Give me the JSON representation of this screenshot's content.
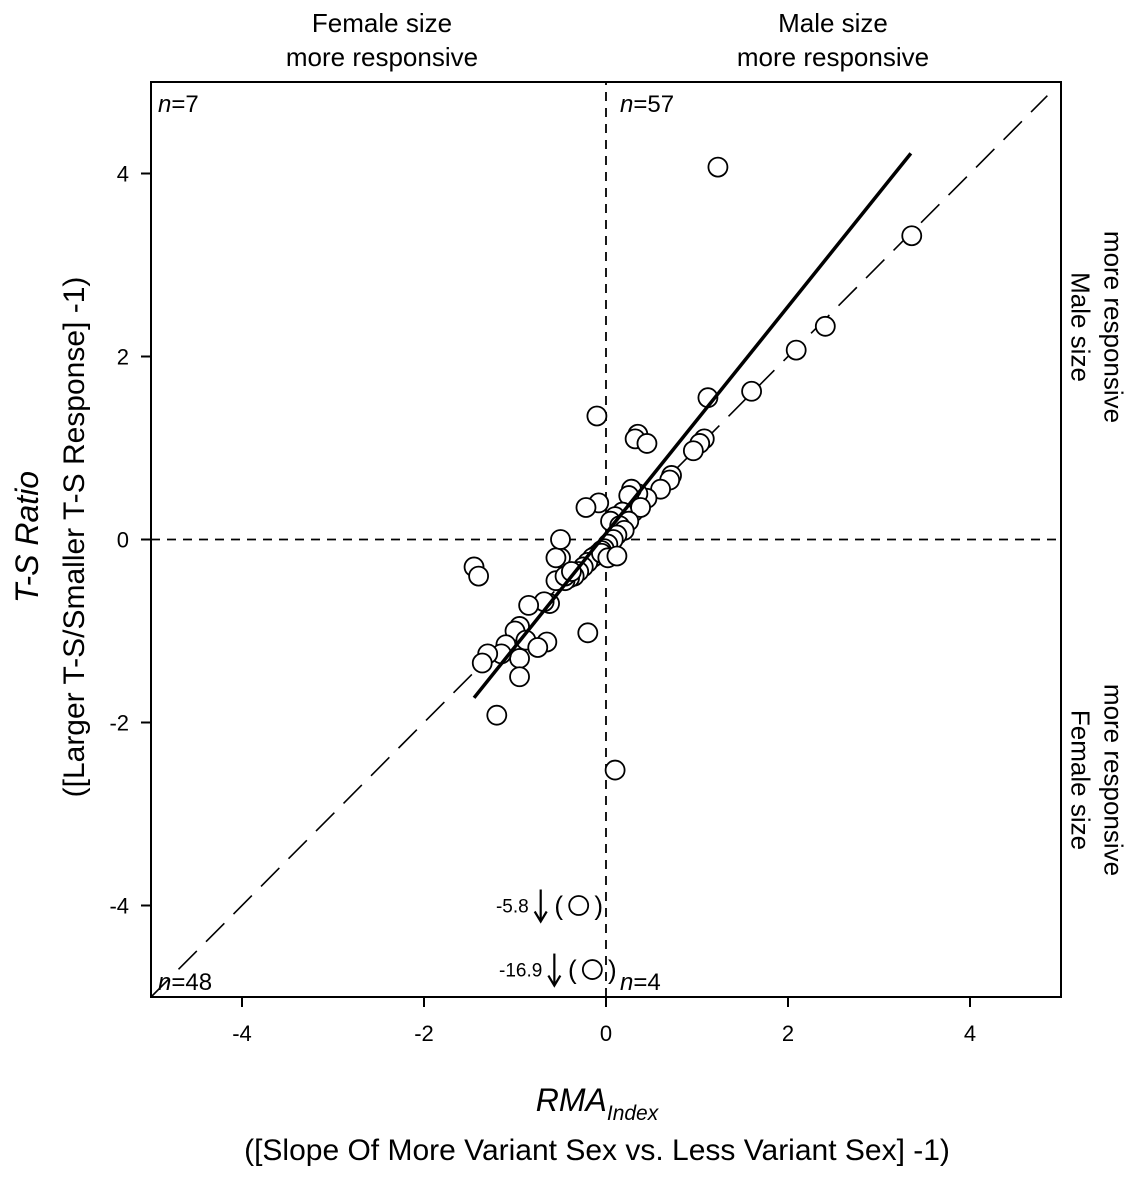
{
  "chart_data": {
    "type": "scatter",
    "xlabel": "RMA",
    "xlabel_subscript": "Index",
    "xlabel_line2": "([Slope Of More Variant Sex vs. Less Variant Sex] -1)",
    "ylabel_line1": "T-S Ratio",
    "ylabel_line2": "([Larger T-S/Smaller T-S Response] -1)",
    "xlim": [
      -5,
      5
    ],
    "ylim": [
      -5,
      5
    ],
    "x_ticks": [
      -4,
      -2,
      0,
      2,
      4
    ],
    "y_ticks": [
      -4,
      -2,
      0,
      2,
      4
    ],
    "x_tick_labels": [
      "-4",
      "-2",
      "0",
      "2",
      "4"
    ],
    "y_tick_labels": [
      "-4",
      "-2",
      "0",
      "2",
      "4"
    ],
    "grid": false,
    "legend": "none",
    "region_labels": {
      "top_left": [
        "Female size",
        "more responsive"
      ],
      "top_right": [
        "Male size",
        "more responsive"
      ],
      "right_upper": [
        "Male size",
        "more responsive"
      ],
      "right_lower": [
        "Female size",
        "more responsive"
      ]
    },
    "quadrant_counts": {
      "top_left": {
        "var": "n",
        "value": "=7"
      },
      "top_right": {
        "var": "n",
        "value": "=57"
      },
      "bottom_left": {
        "var": "n",
        "value": "=48"
      },
      "bottom_right": {
        "var": "n",
        "value": "=4"
      }
    },
    "off_scale_annotations": [
      {
        "label": "-5.8",
        "x": -0.3,
        "y": -4.0
      },
      {
        "label": "-16.9",
        "x": -0.15,
        "y": -4.7
      }
    ],
    "reference_lines": [
      {
        "name": "identity",
        "style": "long-dash",
        "x": [
          -5,
          4.85
        ],
        "y": [
          -5,
          4.85
        ]
      },
      {
        "name": "x0",
        "style": "short-dash",
        "x": [
          0,
          0
        ],
        "y": [
          -5,
          5
        ]
      },
      {
        "name": "y0",
        "style": "short-dash",
        "x": [
          -5,
          5
        ],
        "y": [
          0,
          0
        ]
      }
    ],
    "fit_line": {
      "style": "solid",
      "x": [
        -1.45,
        3.35
      ],
      "y": [
        -1.73,
        4.22
      ]
    },
    "points": {
      "x": [
        1.23,
        3.36,
        2.41,
        2.09,
        1.6,
        1.12,
        -0.1,
        0.35,
        0.32,
        0.45,
        1.08,
        1.03,
        0.96,
        0.72,
        0.7,
        0.6,
        0.45,
        0.35,
        0.28,
        0.25,
        0.3,
        0.18,
        0.1,
        0.05,
        0.38,
        0.25,
        0.15,
        0.2,
        0.12,
        0.08,
        0.02,
        -0.02,
        -0.05,
        -0.08,
        -0.12,
        -0.15,
        -0.2,
        -0.25,
        -0.3,
        -0.35,
        -0.4,
        -0.45,
        -0.5,
        -0.55,
        -0.5,
        -0.08,
        -0.22,
        -0.55,
        -0.45,
        -0.38,
        -0.62,
        -0.68,
        -0.85,
        -0.95,
        -1.0,
        -0.88,
        -1.1,
        -0.95,
        -0.65,
        -0.75,
        -1.15,
        -1.3,
        -1.36,
        -1.45,
        -1.4,
        -1.2,
        -0.95,
        -0.2,
        0.1,
        -0.05,
        0.02,
        0.12
      ],
      "y": [
        4.07,
        3.32,
        2.33,
        2.07,
        1.62,
        1.55,
        1.35,
        1.15,
        1.1,
        1.05,
        1.1,
        1.05,
        0.97,
        0.7,
        0.65,
        0.55,
        0.45,
        0.5,
        0.55,
        0.48,
        0.3,
        0.3,
        0.25,
        0.2,
        0.35,
        0.2,
        0.15,
        0.1,
        0.05,
        0.0,
        -0.05,
        -0.1,
        -0.12,
        -0.15,
        -0.18,
        -0.2,
        -0.25,
        -0.3,
        -0.35,
        -0.4,
        -0.42,
        -0.45,
        -0.2,
        -0.2,
        0.0,
        0.4,
        0.35,
        -0.45,
        -0.4,
        -0.35,
        -0.7,
        -0.68,
        -0.72,
        -0.95,
        -1.0,
        -1.1,
        -1.15,
        -1.3,
        -1.12,
        -1.18,
        -1.25,
        -1.25,
        -1.35,
        -0.3,
        -0.4,
        -1.92,
        -1.5,
        -1.02,
        -2.52,
        -0.15,
        -0.2,
        -0.18
      ]
    },
    "off_scale_points": {
      "x": [
        -0.3,
        -0.15
      ],
      "y": [
        -4.0,
        -4.7
      ]
    }
  }
}
